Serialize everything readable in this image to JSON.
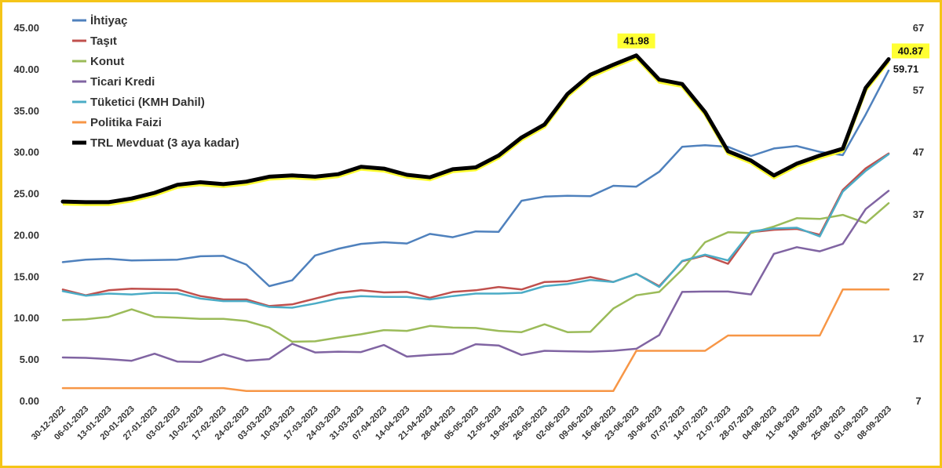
{
  "chart_data": {
    "type": "line",
    "categories": [
      "30-12-2022",
      "06-01-2023",
      "13-01-2023",
      "20-01-2023",
      "27-01-2023",
      "03-02-2023",
      "10-02-2023",
      "17-02-2023",
      "24-02-2023",
      "03-03-2023",
      "10-03-2023",
      "17-03-2023",
      "24-03-2023",
      "31-03-2023",
      "07-04-2023",
      "14-04-2023",
      "21-04-2023",
      "28-04-2023",
      "05-05-2023",
      "12-05-2023",
      "19-05-2023",
      "26-05-2023",
      "02-06-2023",
      "09-06-2023",
      "16-06-2023",
      "23-06-2023",
      "30-06-2023",
      "07-07-2023",
      "14-07-2023",
      "21-07-2023",
      "28-07-2023",
      "04-08-2023",
      "11-08-2023",
      "18-08-2023",
      "25-08-2023",
      "01-09-2023",
      "08-09-2023"
    ],
    "y_left": {
      "ylim": [
        0,
        45
      ],
      "ticks": [
        "0.00",
        "5.00",
        "10.00",
        "15.00",
        "20.00",
        "25.00",
        "30.00",
        "35.00",
        "40.00",
        "45.00"
      ]
    },
    "y_right": {
      "ylim": [
        7,
        67
      ],
      "ticks": [
        "7",
        "17",
        "27",
        "37",
        "47",
        "57",
        "67"
      ]
    },
    "legend_position": "top-left",
    "grid": false,
    "series": [
      {
        "name": "İhtiyaç",
        "color": "#4F81BD",
        "axis": "left",
        "width": 2.5,
        "values": [
          16.7,
          17.0,
          17.1,
          16.9,
          16.95,
          17.0,
          17.4,
          17.45,
          16.4,
          13.8,
          14.5,
          17.5,
          18.3,
          18.9,
          19.1,
          18.95,
          20.1,
          19.7,
          20.4,
          20.35,
          24.1,
          24.6,
          24.7,
          24.65,
          25.9,
          25.8,
          27.6,
          30.6,
          30.8,
          30.6,
          29.5,
          30.4,
          30.7,
          30.0,
          29.6,
          34.5,
          39.8
        ]
      },
      {
        "name": "Taşıt",
        "color": "#C0504D",
        "axis": "left",
        "width": 2.5,
        "values": [
          13.4,
          12.7,
          13.3,
          13.5,
          13.45,
          13.4,
          12.6,
          12.2,
          12.2,
          11.4,
          11.6,
          12.3,
          13.0,
          13.3,
          13.05,
          13.1,
          12.4,
          13.1,
          13.3,
          13.7,
          13.4,
          14.3,
          14.4,
          14.9,
          14.3,
          15.3,
          13.8,
          16.8,
          17.5,
          16.5,
          20.3,
          20.6,
          20.7,
          20.0,
          25.4,
          28.0,
          29.8
        ]
      },
      {
        "name": "Konut",
        "color": "#9BBB59",
        "axis": "left",
        "width": 2.5,
        "values": [
          9.7,
          9.8,
          10.1,
          11.0,
          10.1,
          10.0,
          9.85,
          9.85,
          9.6,
          8.8,
          7.1,
          7.15,
          7.6,
          8.0,
          8.5,
          8.4,
          9.0,
          8.8,
          8.75,
          8.4,
          8.25,
          9.2,
          8.25,
          8.3,
          11.1,
          12.7,
          13.1,
          15.8,
          19.1,
          20.3,
          20.2,
          21.0,
          22.0,
          21.9,
          22.4,
          21.4,
          23.8
        ]
      },
      {
        "name": "Ticari Kredi",
        "color": "#8064A2",
        "axis": "left",
        "width": 2.5,
        "values": [
          5.2,
          5.15,
          5.0,
          4.8,
          5.65,
          4.7,
          4.65,
          5.6,
          4.8,
          5.0,
          6.85,
          5.8,
          5.9,
          5.85,
          6.7,
          5.3,
          5.5,
          5.65,
          6.8,
          6.65,
          5.5,
          6.0,
          5.95,
          5.9,
          6.0,
          6.25,
          7.9,
          13.1,
          13.15,
          13.15,
          12.8,
          17.7,
          18.5,
          18.0,
          18.9,
          23.1,
          25.3
        ]
      },
      {
        "name": "Tüketici (KMH Dahil)",
        "color": "#4BACC6",
        "axis": "left",
        "width": 2.5,
        "values": [
          13.2,
          12.65,
          12.9,
          12.8,
          13.0,
          12.95,
          12.3,
          12.0,
          12.0,
          11.3,
          11.2,
          11.7,
          12.3,
          12.6,
          12.5,
          12.5,
          12.2,
          12.6,
          12.9,
          12.9,
          13.0,
          13.8,
          14.05,
          14.55,
          14.3,
          15.3,
          13.7,
          16.85,
          17.6,
          16.9,
          20.4,
          20.75,
          20.85,
          19.8,
          25.2,
          27.7,
          29.7
        ]
      },
      {
        "name": "Politika Faizi",
        "color": "#F79646",
        "axis": "left",
        "width": 2.5,
        "values": [
          1.5,
          1.5,
          1.5,
          1.5,
          1.5,
          1.5,
          1.5,
          1.5,
          1.15,
          1.15,
          1.15,
          1.15,
          1.15,
          1.15,
          1.15,
          1.15,
          1.15,
          1.15,
          1.15,
          1.15,
          1.15,
          1.15,
          1.15,
          1.15,
          1.15,
          6.0,
          6.0,
          6.0,
          6.0,
          7.85,
          7.85,
          7.85,
          7.85,
          7.85,
          13.4,
          13.4,
          13.4
        ]
      },
      {
        "name": "TRL Mevduat (3 aya kadar)",
        "color": "#000000",
        "glow": "#FFFF33",
        "axis": "right",
        "width": 5,
        "values": [
          39.0,
          38.9,
          38.9,
          39.5,
          40.4,
          41.7,
          42.1,
          41.8,
          42.2,
          43.0,
          43.2,
          43.0,
          43.4,
          44.6,
          44.3,
          43.3,
          42.9,
          44.2,
          44.5,
          46.4,
          49.3,
          51.4,
          56.3,
          59.4,
          61.0,
          62.5,
          58.6,
          57.9,
          53.4,
          47.1,
          45.6,
          43.2,
          45.1,
          46.4,
          47.5,
          57.3,
          61.9
        ]
      }
    ],
    "callouts": {
      "peak_value": "41.98",
      "last_value": "40.87",
      "right_annotation": "59.71"
    }
  }
}
